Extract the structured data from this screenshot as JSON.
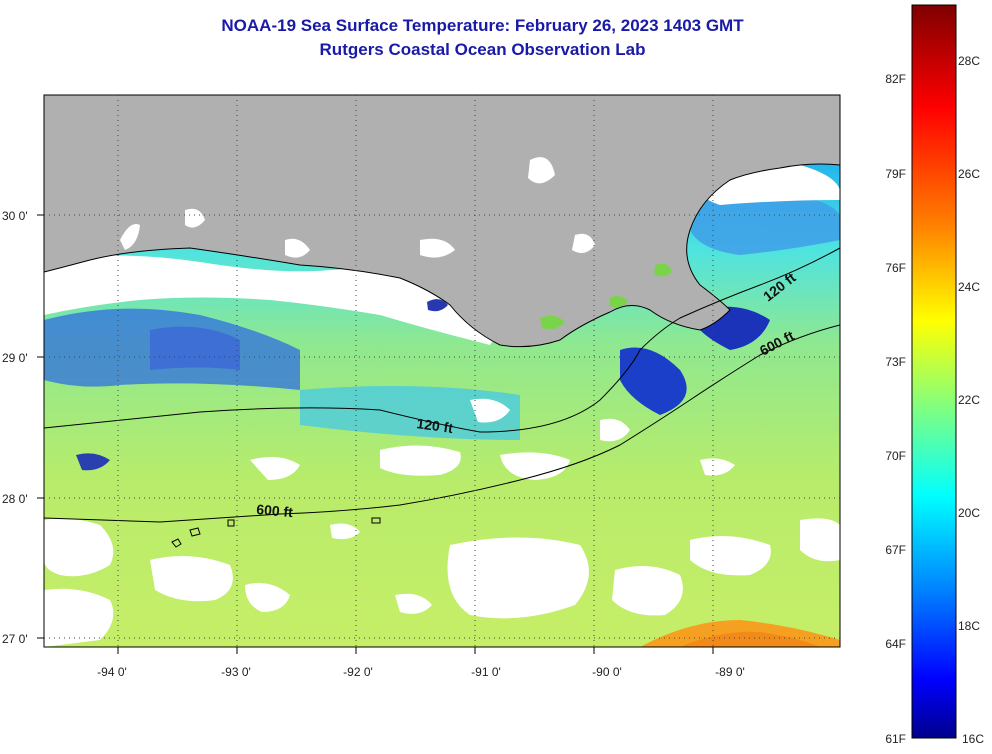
{
  "title_line1": "NOAA-19 Sea Surface Temperature:  February 26, 2023 1403 GMT",
  "title_line2": "Rutgers Coastal Ocean Observation Lab",
  "map": {
    "lat_labels": [
      "30 0'",
      "29 0'",
      "28 0'",
      "27 0'"
    ],
    "lon_labels": [
      "-94 0'",
      "-93 0'",
      "-92 0'",
      "-91 0'",
      "-90 0'",
      "-89 0'"
    ],
    "isobaths": [
      "120 ft",
      "600 ft",
      "120 ft",
      "600 ft"
    ],
    "colors": {
      "land": "#b0b0b0",
      "cloud": "#ffffff"
    }
  },
  "colorbar": {
    "fahrenheit": [
      "82F",
      "79F",
      "76F",
      "73F",
      "70F",
      "67F",
      "64F",
      "61F"
    ],
    "celsius": [
      "28C",
      "26C",
      "24C",
      "22C",
      "20C",
      "18C",
      "16C"
    ],
    "colors": [
      "#7f0000",
      "#ff0000",
      "#ff8000",
      "#ffff00",
      "#80ff80",
      "#00ffff",
      "#0080ff",
      "#0000ff",
      "#00008b"
    ]
  }
}
